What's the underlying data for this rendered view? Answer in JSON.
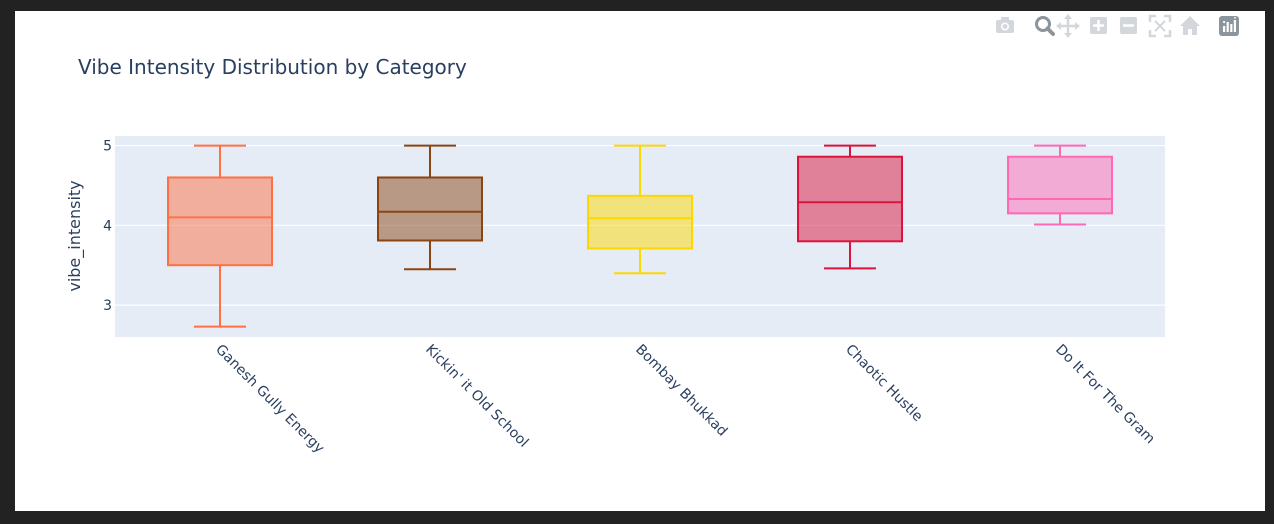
{
  "toolbar": {
    "buttons": [
      {
        "name": "camera-icon",
        "title": "Download plot as a png"
      },
      {
        "name": "zoom-icon",
        "title": "Zoom"
      },
      {
        "name": "pan-icon",
        "title": "Pan"
      },
      {
        "name": "zoom-in-icon",
        "title": "Zoom in"
      },
      {
        "name": "zoom-out-icon",
        "title": "Zoom out"
      },
      {
        "name": "autoscale-icon",
        "title": "Autoscale"
      },
      {
        "name": "reset-axes-icon",
        "title": "Reset axes"
      },
      {
        "name": "plotly-logo-icon",
        "title": "Produced with Plotly"
      }
    ]
  },
  "chart_data": {
    "type": "box",
    "title": "Vibe Intensity Distribution by Category",
    "xlabel": "",
    "ylabel": "vibe_intensity",
    "ylim": [
      2.6,
      5.12
    ],
    "yticks": [
      3,
      4,
      5
    ],
    "grid": true,
    "categories": [
      "Ganesh Gully Energy",
      "Kickin' it Old School",
      "Bombay Bhukkad",
      "Chaotic Hustle",
      "Do It For The Gram"
    ],
    "boxes": [
      {
        "category": "Ganesh Gully Energy",
        "min": 2.73,
        "q1": 3.5,
        "median": 4.1,
        "q3": 4.6,
        "max": 5.0,
        "color": "#ff7043"
      },
      {
        "category": "Kickin' it Old School",
        "min": 3.45,
        "q1": 3.81,
        "median": 4.17,
        "q3": 4.6,
        "max": 5.0,
        "color": "#8b4513"
      },
      {
        "category": "Bombay Bhukkad",
        "min": 3.4,
        "q1": 3.71,
        "median": 4.09,
        "q3": 4.37,
        "max": 5.0,
        "color": "#ffd700"
      },
      {
        "category": "Chaotic Hustle",
        "min": 3.46,
        "q1": 3.8,
        "median": 4.29,
        "q3": 4.86,
        "max": 5.0,
        "color": "#dc143c"
      },
      {
        "category": "Do It For The Gram",
        "min": 4.01,
        "q1": 4.15,
        "median": 4.33,
        "q3": 4.86,
        "max": 5.0,
        "color": "#ff69b4"
      }
    ]
  }
}
